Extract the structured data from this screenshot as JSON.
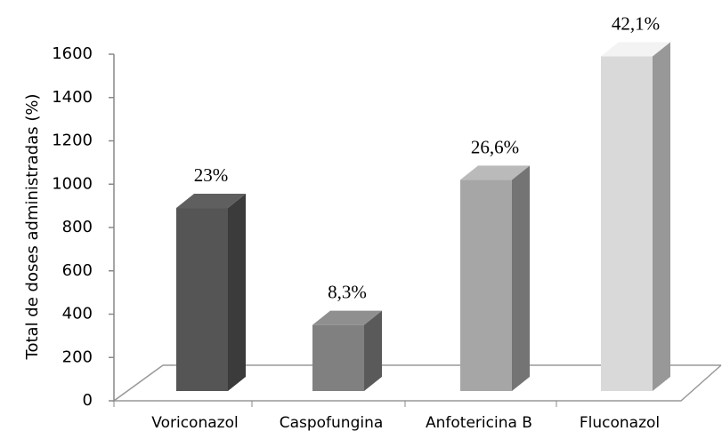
{
  "chart_data": {
    "type": "bar3d",
    "y_label": "Total de doses administradas (%)",
    "categories": [
      "Voriconazol",
      "Caspofungina",
      "Anfotericina B",
      "Fluconazol"
    ],
    "values": [
      845,
      305,
      975,
      1545
    ],
    "annotations": [
      "23%",
      "8,3%",
      "26,6%",
      "42,1%"
    ],
    "colors": [
      "#555555",
      "#808080",
      "#a6a6a6",
      "#d9d9d9"
    ],
    "ylim": [
      0,
      1600
    ],
    "yticks": [
      0,
      200,
      400,
      600,
      800,
      1000,
      1200,
      1400,
      1600
    ],
    "grid": false
  }
}
